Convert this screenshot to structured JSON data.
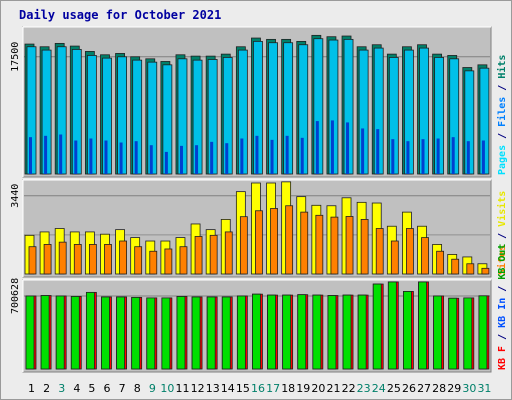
{
  "chart_data": {
    "type": "bar",
    "title": "Daily usage for October 2021",
    "categories": [
      "1",
      "2",
      "3",
      "4",
      "5",
      "6",
      "7",
      "8",
      "9",
      "10",
      "11",
      "12",
      "13",
      "14",
      "15",
      "16",
      "17",
      "18",
      "19",
      "20",
      "21",
      "22",
      "23",
      "24",
      "25",
      "26",
      "27",
      "28",
      "29",
      "30",
      "31"
    ],
    "weekend_days": [
      "3",
      "9",
      "10",
      "16",
      "17",
      "23",
      "24",
      "30",
      "31"
    ],
    "panels": [
      {
        "name": "hits-files-pages",
        "ymax_label": "17500",
        "ylim": [
          0,
          21500
        ],
        "legend": [
          {
            "text": "Pages",
            "color": "#00e0ff"
          },
          {
            "text": " / ",
            "color": "#000080"
          },
          {
            "text": "Files",
            "color": "#0080ff"
          },
          {
            "text": " / ",
            "color": "#000080"
          },
          {
            "text": "Hits",
            "color": "#00806a"
          }
        ],
        "series": [
          {
            "name": "Hits",
            "color": "#00806a",
            "values": [
              19400,
              19000,
              19500,
              19100,
              18300,
              17800,
              18000,
              17500,
              17200,
              16800,
              17800,
              17600,
              17600,
              17900,
              19000,
              20300,
              20100,
              20100,
              19800,
              20700,
              20500,
              20600,
              19000,
              19300,
              17900,
              19000,
              19300,
              17900,
              17700,
              15900,
              16300
            ]
          },
          {
            "name": "Files",
            "color": "#00c0e8",
            "values": [
              19000,
              18500,
              19000,
              18600,
              17700,
              17300,
              17500,
              17000,
              16700,
              16300,
              17200,
              17000,
              17100,
              17400,
              18500,
              19800,
              19600,
              19600,
              19300,
              20200,
              20000,
              20100,
              18500,
              18800,
              17400,
              18500,
              18800,
              17400,
              17200,
              15400,
              15800
            ]
          },
          {
            "name": "Pages",
            "color": "#0040d0",
            "values": [
              5500,
              5700,
              5900,
              5000,
              5300,
              5000,
              4700,
              4900,
              4300,
              3300,
              4200,
              4300,
              4800,
              4600,
              5300,
              5700,
              5100,
              5700,
              5400,
              7900,
              8000,
              7700,
              6800,
              6700,
              5200,
              4900,
              5200,
              5300,
              5500,
              4900,
              5000
            ]
          }
        ]
      },
      {
        "name": "visits-sites",
        "ymax_label": "3440",
        "ylim": [
          0,
          4000
        ],
        "legend": [
          {
            "text": "Sites",
            "color": "#ff8000"
          },
          {
            "text": " / ",
            "color": "#000080"
          },
          {
            "text": "Visits",
            "color": "#e8e800"
          }
        ],
        "series": [
          {
            "name": "Visits",
            "color": "#ffff00",
            "values": [
              1700,
              1850,
              2000,
              1850,
              1850,
              1750,
              1950,
              1600,
              1450,
              1450,
              1600,
              2200,
              1950,
              2400,
              3620,
              4000,
              4000,
              4050,
              3400,
              3020,
              3000,
              3350,
              3150,
              3120,
              2100,
              2720,
              2100,
              1300,
              860,
              750,
              450
            ]
          },
          {
            "name": "Sites",
            "color": "#ff8000",
            "values": [
              1200,
              1300,
              1400,
              1300,
              1300,
              1300,
              1450,
              1200,
              1000,
              1100,
              1200,
              1650,
              1700,
              1850,
              2520,
              2780,
              2880,
              3000,
              2720,
              2580,
              2500,
              2530,
              2400,
              2000,
              1450,
              2000,
              1600,
              1000,
              650,
              450,
              250
            ]
          }
        ]
      },
      {
        "name": "kbytes",
        "ymax_label": "700628",
        "ylim": [
          0,
          825000
        ],
        "legend": [
          {
            "text": "KB F",
            "color": "#ff0000"
          },
          {
            "text": " / ",
            "color": "#000080"
          },
          {
            "text": "KB In",
            "color": "#0050ff"
          },
          {
            "text": " / ",
            "color": "#000080"
          },
          {
            "text": "KB Out",
            "color": "#00a000"
          }
        ],
        "series": [
          {
            "name": "KB F",
            "color": "#ff0000",
            "values": [
              700600,
              705000,
              700600,
              696000,
              735000,
              691000,
              691000,
              687000,
              682000,
              682000,
              696000,
              691000,
              691000,
              691000,
              700600,
              718000,
              709000,
              709000,
              713000,
              709000,
              705000,
              709000,
              709000,
              815000,
              835000,
              744000,
              835000,
              700600,
              679000,
              682000,
              702000
            ]
          },
          {
            "name": "KB Out",
            "color": "#00e000",
            "values": [
              700600,
              705000,
              700600,
              696000,
              735000,
              691000,
              691000,
              687000,
              682000,
              682000,
              696000,
              691000,
              691000,
              691000,
              700600,
              718000,
              709000,
              709000,
              713000,
              709000,
              705000,
              709000,
              709000,
              815000,
              835000,
              744000,
              835000,
              700600,
              679000,
              682000,
              702000
            ]
          }
        ]
      }
    ]
  }
}
